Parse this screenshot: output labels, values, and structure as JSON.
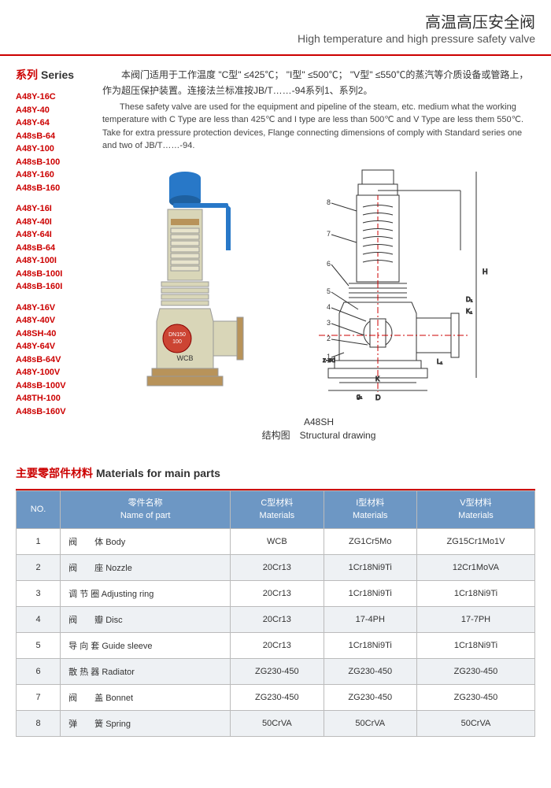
{
  "header": {
    "title_cn": "高温高压安全阀",
    "title_en": "High temperature and high pressure safety valve"
  },
  "series": {
    "label_cn": "系列",
    "label_en": "Series",
    "group1": [
      "A48Y-16C",
      "A48Y-40",
      "A48Y-64",
      "A48sB-64",
      "A48Y-100",
      "A48sB-100",
      "A48Y-160",
      "A48sB-160"
    ],
    "group2": [
      "A48Y-16I",
      "A48Y-40I",
      "A48Y-64I",
      "A48sB-64",
      "A48Y-100I",
      "A48sB-100I",
      "A48sB-160I"
    ],
    "group3": [
      "A48Y-16V",
      "A48Y-40V",
      "A48SH-40",
      "A48Y-64V",
      "A48sB-64V",
      "A48Y-100V",
      "A48sB-100V",
      "A48TH-100",
      "A48sB-160V"
    ]
  },
  "description": {
    "cn": "本阀门适用于工作温度 \"C型\" ≤425℃； \"I型\" ≤500℃； \"V型\" ≤550℃的蒸汽等介质设备或管路上，作为超压保护装置。连接法兰标准按JB/T……-94系列1、系列2。",
    "en": "These safety valve are used for the equipment and pipeline of the steam, etc. medium what the working temperature with C Type are less than 425℃ and I type are less than 500℃ and V Type are less them 550℃. Take for extra pressure protection devices, Flange connecting dimensions of comply with Standard series one and two of JB/T……-94."
  },
  "caption": {
    "model": "A48SH",
    "line_cn": "结构图",
    "line_en": "Structural drawing"
  },
  "materials": {
    "title_cn": "主要零部件材料",
    "title_en": "Materials for main parts",
    "columns": {
      "no": "NO.",
      "name_cn": "零件名称",
      "name_en": "Name of part",
      "c_cn": "C型材料",
      "c_en": "Materials",
      "i_cn": "I型材料",
      "i_en": "Materials",
      "v_cn": "V型材料",
      "v_en": "Materials"
    },
    "rows": [
      {
        "no": "1",
        "name_cn": "阀　　体",
        "name_en": "Body",
        "c": "WCB",
        "i": "ZG1Cr5Mo",
        "v": "ZG15Cr1Mo1V"
      },
      {
        "no": "2",
        "name_cn": "阀　　座",
        "name_en": "Nozzle",
        "c": "20Cr13",
        "i": "1Cr18Ni9Ti",
        "v": "12Cr1MoVA"
      },
      {
        "no": "3",
        "name_cn": "调 节 圈",
        "name_en": "Adjusting ring",
        "c": "20Cr13",
        "i": "1Cr18Ni9Ti",
        "v": "1Cr18Ni9Ti"
      },
      {
        "no": "4",
        "name_cn": "阀　　瓣",
        "name_en": "Disc",
        "c": "20Cr13",
        "i": "17-4PH",
        "v": "17-7PH"
      },
      {
        "no": "5",
        "name_cn": "导 向 套",
        "name_en": "Guide sleeve",
        "c": "20Cr13",
        "i": "1Cr18Ni9Ti",
        "v": "1Cr18Ni9Ti"
      },
      {
        "no": "6",
        "name_cn": "散 热 器",
        "name_en": "Radiator",
        "c": "ZG230-450",
        "i": "ZG230-450",
        "v": "ZG230-450"
      },
      {
        "no": "7",
        "name_cn": "阀　　盖",
        "name_en": "Bonnet",
        "c": "ZG230-450",
        "i": "ZG230-450",
        "v": "ZG230-450"
      },
      {
        "no": "8",
        "name_cn": "弹　　簧",
        "name_en": "Spring",
        "c": "50CrVA",
        "i": "50CrVA",
        "v": "50CrVA"
      }
    ]
  },
  "colors": {
    "accent": "#c00",
    "header_th": "#6d97c4",
    "valve_cap": "#2878c8",
    "valve_body": "#d9d6b8",
    "valve_bronze": "#b8935a",
    "drawing_line": "#333"
  }
}
